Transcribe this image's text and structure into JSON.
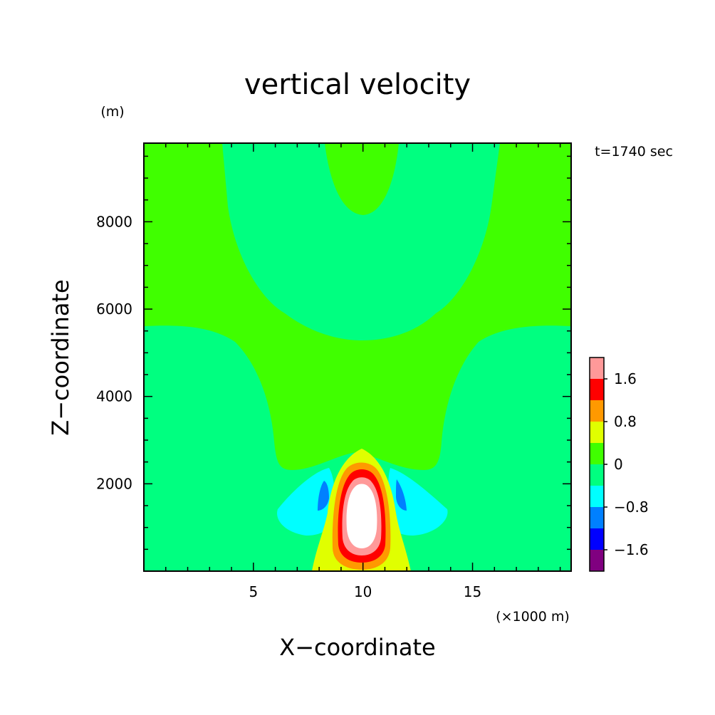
{
  "chart_data": {
    "type": "heatmap",
    "title": "vertical velocity",
    "xlabel": "X−coordinate",
    "ylabel": "Z−coordinate",
    "x_unit": "(×1000 m)",
    "y_unit": "(m)",
    "time_label": "t=1740 sec",
    "xlim": [
      0,
      19.5
    ],
    "ylim": [
      0,
      9800
    ],
    "x_ticks": [
      5,
      10,
      15
    ],
    "x_tick_labels": [
      "5",
      "10",
      "15"
    ],
    "y_ticks": [
      2000,
      4000,
      6000,
      8000
    ],
    "y_tick_labels": [
      "2000",
      "4000",
      "6000",
      "8000"
    ],
    "legend_position": "right",
    "levels": [
      -2.0,
      -1.6,
      -1.2,
      -0.8,
      -0.4,
      0,
      0.4,
      0.8,
      1.2,
      1.6,
      2.0
    ],
    "level_colors": [
      "#800080",
      "#0000ff",
      "#0080ff",
      "#00ffff",
      "#00ff80",
      "#40ff00",
      "#e0ff00",
      "#ff9900",
      "#ff0000",
      "#ff9999"
    ],
    "colorbar_labels": [
      {
        "value": 1.6,
        "text": "1.6"
      },
      {
        "value": 0.8,
        "text": "0.8"
      },
      {
        "value": 0,
        "text": "0"
      },
      {
        "value": -0.8,
        "text": "−0.8"
      },
      {
        "value": -1.6,
        "text": "−1.6"
      }
    ],
    "regions": [
      {
        "name": "background",
        "value": 0.2,
        "color": "#40ff00"
      },
      {
        "name": "upper-negative-band",
        "value": -0.2,
        "color": "#00ff80"
      },
      {
        "name": "top-center-positive",
        "value": 0.2,
        "color": "#40ff00"
      },
      {
        "name": "left-downdraft-outer",
        "value": -0.6,
        "color": "#00ffff"
      },
      {
        "name": "right-downdraft-outer",
        "value": -0.6,
        "color": "#00ffff"
      },
      {
        "name": "left-downdraft-core",
        "value": -1.0,
        "color": "#0080ff"
      },
      {
        "name": "right-downdraft-core",
        "value": -1.0,
        "color": "#0080ff"
      },
      {
        "name": "updraft-0.4",
        "value": 0.6,
        "color": "#e0ff00"
      },
      {
        "name": "updraft-0.8",
        "value": 1.0,
        "color": "#ff9900"
      },
      {
        "name": "updraft-1.2",
        "value": 1.4,
        "color": "#ff0000"
      },
      {
        "name": "updraft-1.6",
        "value": 1.8,
        "color": "#ff9999"
      },
      {
        "name": "updraft-max",
        "value": 2.2,
        "color": "#ffffff"
      }
    ]
  }
}
